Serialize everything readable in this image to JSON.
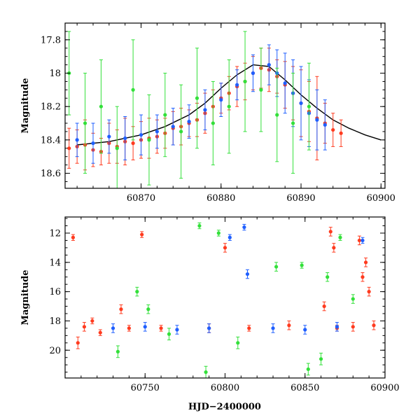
{
  "chart_data": [
    {
      "type": "scatter",
      "title": "",
      "xlabel": "",
      "ylabel": "Magnitude",
      "xlim": [
        60860.5,
        60900.5
      ],
      "ylim": [
        18.69,
        17.7
      ],
      "y_inverted": true,
      "x_tick_labels": [
        "60870",
        "60880",
        "60890",
        "60900"
      ],
      "x_ticks": [
        60870,
        60880,
        60890,
        60900
      ],
      "y_tick_labels": [
        "17.8",
        "18",
        "18.2",
        "18.4",
        "18.6"
      ],
      "y_ticks": [
        17.8,
        18.0,
        18.2,
        18.4,
        18.6
      ],
      "model_curve": {
        "color": "#000000",
        "x": [
          60862,
          60866,
          60870,
          60873,
          60876,
          60878,
          60880,
          60882,
          60884,
          60886,
          60888,
          60890,
          60892,
          60894,
          60896,
          60898,
          60900
        ],
        "y": [
          18.43,
          18.41,
          18.37,
          18.32,
          18.25,
          18.18,
          18.09,
          18.01,
          17.95,
          17.96,
          18.04,
          18.13,
          18.21,
          18.28,
          18.33,
          18.37,
          18.4
        ]
      },
      "series": [
        {
          "color": "#ff3b1f",
          "x": [
            60861,
            60862,
            60863,
            60864,
            60865,
            60866,
            60867,
            60868,
            60869,
            60870,
            60871,
            60872,
            60873,
            60874,
            60875,
            60876,
            60877,
            60878,
            60879,
            60880,
            60881,
            60882,
            60883,
            60884,
            60885,
            60886,
            60887,
            60888,
            60889,
            60890,
            60891,
            60892,
            60893,
            60894,
            60895
          ],
          "y": [
            18.45,
            18.44,
            18.43,
            18.46,
            18.47,
            18.42,
            18.44,
            18.41,
            18.42,
            18.4,
            18.39,
            18.38,
            18.36,
            18.33,
            18.32,
            18.3,
            18.28,
            18.24,
            18.2,
            18.15,
            18.12,
            18.08,
            18.05,
            18.0,
            17.97,
            17.98,
            18.02,
            18.07,
            18.12,
            18.18,
            18.23,
            18.27,
            18.3,
            18.34,
            18.36
          ],
          "err": [
            0.12,
            0.1,
            0.15,
            0.1,
            0.08,
            0.12,
            0.1,
            0.14,
            0.1,
            0.11,
            0.12,
            0.1,
            0.09,
            0.1,
            0.11,
            0.08,
            0.1,
            0.12,
            0.1,
            0.09,
            0.1,
            0.12,
            0.11,
            0.1,
            0.12,
            0.13,
            0.1,
            0.14,
            0.16,
            0.2,
            0.18,
            0.25,
            0.12,
            0.1,
            0.08
          ]
        },
        {
          "color": "#1f5fff",
          "x": [
            60862,
            60864,
            60866,
            60868,
            60870,
            60872,
            60874,
            60876,
            60878,
            60880,
            60882,
            60884,
            60886,
            60887,
            60888,
            60889,
            60890,
            60891,
            60892,
            60893
          ],
          "y": [
            18.4,
            18.42,
            18.38,
            18.39,
            18.37,
            18.35,
            18.32,
            18.29,
            18.22,
            18.16,
            18.07,
            18.0,
            17.95,
            18.0,
            18.06,
            18.12,
            18.18,
            18.24,
            18.28,
            18.31
          ],
          "err": [
            0.1,
            0.12,
            0.1,
            0.13,
            0.12,
            0.1,
            0.11,
            0.1,
            0.12,
            0.1,
            0.09,
            0.11,
            0.12,
            0.14,
            0.18,
            0.2,
            0.22,
            0.2,
            0.18,
            0.15
          ]
        },
        {
          "color": "#33e03a",
          "x": [
            60861,
            60863,
            60865,
            60867,
            60869,
            60871,
            60873,
            60875,
            60877,
            60879,
            60881,
            60883,
            60885,
            60887,
            60889,
            60891
          ],
          "y": [
            18.0,
            18.3,
            18.2,
            18.45,
            18.1,
            18.4,
            18.25,
            18.35,
            18.15,
            18.3,
            18.2,
            18.05,
            18.1,
            18.25,
            18.3,
            18.2
          ],
          "err": [
            0.25,
            0.3,
            0.28,
            0.25,
            0.3,
            0.27,
            0.25,
            0.28,
            0.3,
            0.25,
            0.28,
            0.3,
            0.25,
            0.28,
            0.3,
            0.26
          ]
        }
      ]
    },
    {
      "type": "scatter",
      "title": "",
      "xlabel": "HJD−2400000",
      "ylabel": "Magnitude",
      "xlim": [
        60700,
        60900
      ],
      "ylim": [
        21.9,
        10.9
      ],
      "y_inverted": true,
      "x_tick_labels": [
        "60750",
        "60800",
        "60850",
        "60900"
      ],
      "x_ticks": [
        60750,
        60800,
        60850,
        60900
      ],
      "y_tick_labels": [
        "12",
        "14",
        "16",
        "18",
        "20"
      ],
      "y_ticks": [
        12,
        14,
        16,
        18,
        20
      ],
      "series": [
        {
          "color": "#ff3b1f",
          "x": [
            60705,
            60708,
            60712,
            60717,
            60722,
            60735,
            60740,
            60748,
            60760,
            60790,
            60800,
            60815,
            60840,
            60862,
            60866,
            60868,
            60870,
            60880,
            60884,
            60886,
            60888,
            60890,
            60893
          ],
          "y": [
            12.3,
            19.5,
            18.4,
            18.0,
            18.8,
            17.2,
            18.5,
            12.1,
            18.5,
            18.5,
            13.0,
            18.5,
            18.3,
            17.0,
            11.9,
            13.0,
            18.5,
            18.4,
            12.5,
            15.0,
            14.0,
            16.0,
            18.3
          ],
          "err": [
            0.2,
            0.4,
            0.3,
            0.2,
            0.2,
            0.3,
            0.2,
            0.2,
            0.2,
            0.3,
            0.3,
            0.2,
            0.3,
            0.3,
            0.3,
            0.3,
            0.2,
            0.3,
            0.3,
            0.3,
            0.3,
            0.3,
            0.3
          ]
        },
        {
          "color": "#1f5fff",
          "x": [
            60730,
            60750,
            60770,
            60790,
            60803,
            60812,
            60814,
            60830,
            60850,
            60870,
            60886
          ],
          "y": [
            18.5,
            18.4,
            18.6,
            18.5,
            12.3,
            11.6,
            14.8,
            18.5,
            18.6,
            18.4,
            12.5
          ],
          "err": [
            0.3,
            0.3,
            0.3,
            0.3,
            0.2,
            0.2,
            0.3,
            0.3,
            0.3,
            0.3,
            0.2
          ]
        },
        {
          "color": "#33e03a",
          "x": [
            60733,
            60745,
            60752,
            60765,
            60784,
            60788,
            60796,
            60808,
            60832,
            60848,
            60852,
            60860,
            60864,
            60872,
            60880
          ],
          "y": [
            20.1,
            16.0,
            17.2,
            18.9,
            11.5,
            21.5,
            12.0,
            19.5,
            14.3,
            14.2,
            21.3,
            20.6,
            15.0,
            12.3,
            16.5
          ],
          "err": [
            0.4,
            0.3,
            0.3,
            0.4,
            0.2,
            0.4,
            0.2,
            0.4,
            0.3,
            0.2,
            0.4,
            0.4,
            0.3,
            0.2,
            0.3
          ]
        }
      ]
    }
  ]
}
